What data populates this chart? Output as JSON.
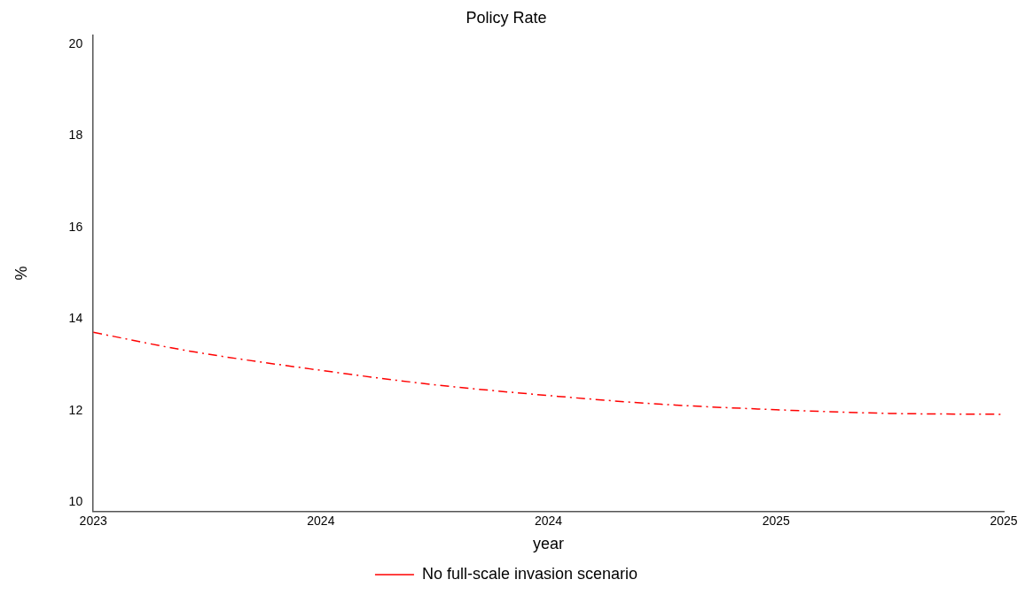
{
  "chart_data": {
    "type": "line",
    "title": "Policy Rate",
    "xlabel": "year",
    "ylabel": "%",
    "x": [
      2023,
      2023.206,
      2023.5,
      2023.746,
      2024,
      2024.248,
      2024.5,
      2024.749,
      2025
    ],
    "series": [
      {
        "name": "No full-scale invasion scenario",
        "color": "#ff0000",
        "values": [
          13.71,
          13.31,
          12.88,
          12.57,
          12.33,
          12.14,
          12.02,
          11.94,
          11.92
        ]
      }
    ],
    "xlim": [
      2023,
      2025
    ],
    "xticks": [
      2023,
      {
        "value": 2023.5,
        "label": "2024"
      },
      2024,
      {
        "value": 2024.5,
        "label": "2025"
      },
      2025
    ],
    "ylim": [
      9.8,
      20.2
    ],
    "yticks": [
      10,
      12,
      14,
      16,
      18,
      20
    ],
    "grid": false,
    "legend": "bottom",
    "marker": "none",
    "line_style": "dashed"
  }
}
